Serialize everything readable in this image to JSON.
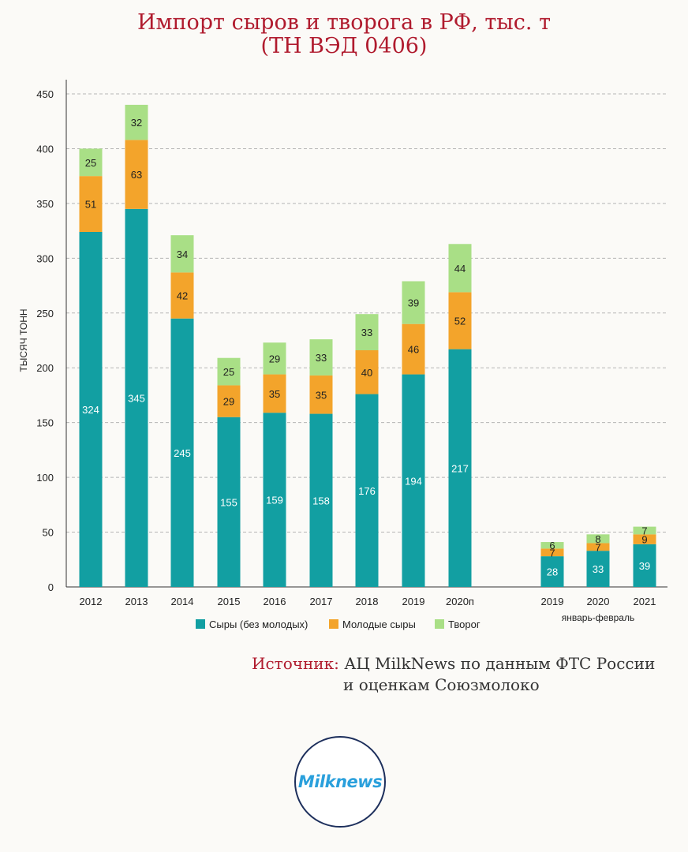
{
  "title": {
    "line1": "Импорт сыров и творога в РФ, тыс. т",
    "line2": "(ТН ВЭД 0406)"
  },
  "source": {
    "label": "Источник:",
    "line1": "АЦ MilkNews по данным ФТС России",
    "line2": "и оценкам Союзмолоко"
  },
  "logo": {
    "text": "Milknews"
  },
  "colors": {
    "series_1": "#129fa2",
    "series_2": "#f3a42b",
    "series_3": "#a9df86",
    "title": "#b01b2e"
  },
  "chart_data": {
    "type": "bar",
    "stacked": true,
    "title": "Импорт сыров и творога в РФ, тыс. т (ТН ВЭД 0406)",
    "xlabel": "",
    "ylabel": "ТЫСЯЧ ТОНН",
    "ylim": [
      0,
      450
    ],
    "yticks": [
      0,
      50,
      100,
      150,
      200,
      250,
      300,
      350,
      400,
      450
    ],
    "grid": true,
    "legend_position": "bottom",
    "categories": [
      "2012",
      "2013",
      "2014",
      "2015",
      "2016",
      "2017",
      "2018",
      "2019",
      "2020п",
      "2019",
      "2020",
      "2021"
    ],
    "group_label": {
      "text": "январь-февраль",
      "categories": [
        "2019",
        "2020",
        "2021"
      ]
    },
    "series": [
      {
        "name": "Сыры (без молодых)",
        "color": "#129fa2",
        "values": [
          324,
          345,
          245,
          155,
          159,
          158,
          176,
          194,
          217,
          28,
          33,
          39
        ]
      },
      {
        "name": "Молодые сыры",
        "color": "#f3a42b",
        "values": [
          51,
          63,
          42,
          29,
          35,
          35,
          40,
          46,
          52,
          7,
          7,
          9
        ]
      },
      {
        "name": "Творог",
        "color": "#a9df86",
        "values": [
          25,
          32,
          34,
          25,
          29,
          33,
          33,
          39,
          44,
          6,
          8,
          7
        ]
      }
    ]
  }
}
